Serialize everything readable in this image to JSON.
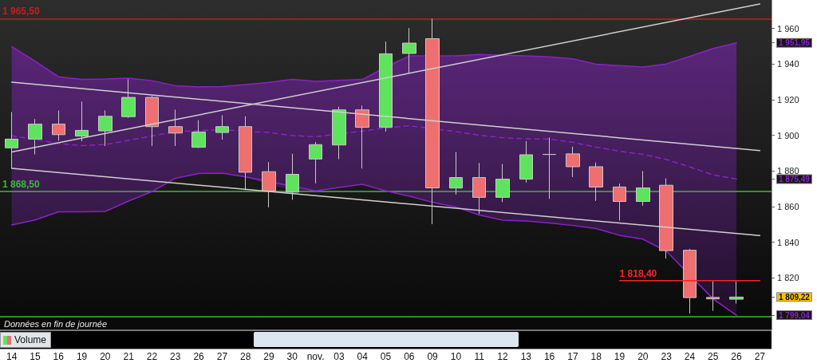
{
  "chart_data": {
    "type": "candlestick",
    "categories": [
      "14",
      "15",
      "16",
      "19",
      "20",
      "21",
      "22",
      "23",
      "26",
      "27",
      "28",
      "29",
      "30",
      "nov.",
      "03",
      "04",
      "05",
      "06",
      "09",
      "10",
      "11",
      "12",
      "13",
      "16",
      "17",
      "18",
      "19",
      "20",
      "23",
      "24",
      "25",
      "26",
      "27"
    ],
    "series": [
      {
        "type": "line",
        "color": "#8a22c8",
        "line_style": "dashed",
        "values": [
          1899.7,
          1897.8,
          1895.4,
          1894.3,
          1894.8,
          1897.2,
          1899.6,
          1902.1,
          1902.7,
          1903.1,
          null,
          1901.6,
          1899.9,
          1899.2,
          null,
          1902.4,
          1904.2,
          1905.4,
          null,
          1902.1,
          1900.1,
          1898.7,
          1898.1,
          1897.9,
          1896.1,
          1893.4,
          1891.1,
          1889.3,
          1886.5,
          1882.3,
          1877.8,
          1875.49,
          null
        ],
        "upper": [
          1949.9,
          1941.7,
          1932.9,
          1931.4,
          1931.6,
          1932.1,
          1930.7,
          1927.9,
          1927.2,
          1927.4,
          1928.5,
          1929.8,
          1931.4,
          1930.3,
          1930.9,
          1931.4,
          1939.4,
          1944.6,
          1943.9,
          1944.6,
          1945.4,
          1945.0,
          1944.6,
          1944.1,
          1943.0,
          1939.9,
          1939.2,
          1938.4,
          1940.1,
          1944.3,
          1948.8,
          1951.95,
          null
        ],
        "lower": [
          1849.7,
          1852.5,
          1857.1,
          1857.1,
          1857.3,
          1863.1,
          1868.4,
          1875.9,
          1878.6,
          1878.8,
          1876.7,
          1872.5,
          1869.0,
          1868.8,
          1870.7,
          1872.5,
          1868.8,
          1865.9,
          1862.4,
          1859.8,
          1855.3,
          1852.4,
          1851.9,
          1850.8,
          1849.4,
          1847.7,
          1843.9,
          1841.7,
          1835.0,
          1821.1,
          1808.2,
          1799.04,
          null
        ]
      },
      {
        "type": "line",
        "color": "#8a22c8",
        "values": [
          1949.9,
          1941.7,
          1932.9,
          1931.4,
          1931.6,
          1932.1,
          1930.7,
          1927.9,
          1927.2,
          1927.4,
          1928.5,
          1929.8,
          1931.4,
          1930.3,
          1930.9,
          1931.4,
          null,
          1944.6,
          null,
          1944.6,
          1945.4,
          1945.0,
          1944.6,
          1944.1,
          1943.0,
          1939.9,
          1939.2,
          1938.4,
          1940.1,
          1944.3,
          1948.8,
          1951.95,
          null
        ]
      },
      {
        "type": "line",
        "color": "#8a22c8",
        "values": [
          1849.7,
          1852.5,
          1857.1,
          1857.1,
          1857.3,
          1863.1,
          1868.4,
          1875.9,
          1878.6,
          1878.8,
          1876.7,
          null,
          null,
          1868.8,
          1870.7,
          1872.5,
          1868.8,
          1865.9,
          1862.4,
          1859.8,
          1855.3,
          1852.4,
          1851.9,
          1850.8,
          1849.4,
          1847.7,
          1843.9,
          1841.7,
          1835.0,
          null,
          1808.2,
          1799.04,
          null
        ]
      },
      {
        "type": "candlestick",
        "ohlc": [
          [
            1893.0,
            1913.1,
            1881.5,
            1897.9
          ],
          [
            1897.9,
            1909.1,
            1889.3,
            1906.3
          ],
          [
            1906.3,
            1914.0,
            1897.0,
            1900.4
          ],
          [
            1899.6,
            1918.9,
            1896.7,
            1902.8
          ],
          [
            1902.5,
            1914.0,
            1894.0,
            1910.7
          ],
          [
            1910.5,
            1931.5,
            1909.8,
            1921.3
          ],
          [
            1921.3,
            1922.3,
            1894.0,
            1904.9
          ],
          [
            1904.9,
            1914.4,
            1894.0,
            1901.3
          ],
          [
            1893.3,
            1908.5,
            1892.9,
            1901.9
          ],
          [
            1901.6,
            1911.3,
            1897.6,
            1904.9
          ],
          [
            1904.9,
            1910.7,
            1869.2,
            1879.3
          ],
          [
            1879.6,
            1885.0,
            1859.5,
            1868.8
          ],
          [
            1868.1,
            1889.7,
            1863.8,
            1878.1
          ],
          [
            1886.7,
            1896.3,
            1873.0,
            1894.8
          ],
          [
            1894.6,
            1916.1,
            1886.6,
            1914.3
          ],
          [
            1914.3,
            1916.7,
            1881.4,
            1904.5
          ],
          [
            1904.5,
            1952.7,
            1902.1,
            1945.8
          ],
          [
            1946.0,
            1960.3,
            1935.1,
            1951.8
          ],
          [
            1954.3,
            1965.5,
            1850.1,
            1870.5
          ],
          [
            1870.4,
            1890.6,
            1866.8,
            1876.3
          ],
          [
            1876.3,
            1884.5,
            1855.8,
            1865.2
          ],
          [
            1865.2,
            1883.9,
            1862.5,
            1875.4
          ],
          [
            1875.4,
            1896.7,
            1873.5,
            1889.1
          ],
          [
            1889.3,
            1898.8,
            1864.3,
            1889.3
          ],
          [
            1889.6,
            1893.6,
            1876.6,
            1882.4
          ],
          [
            1882.4,
            1884.8,
            1863.2,
            1871.0
          ],
          [
            1871.0,
            1872.9,
            1852.2,
            1862.9
          ],
          [
            1862.9,
            1880.0,
            1860.5,
            1870.5
          ],
          [
            1872.0,
            1875.9,
            1830.8,
            1835.3
          ],
          [
            1835.5,
            1836.3,
            1800.0,
            1808.9
          ],
          [
            1809.0,
            1818.1,
            1801.5,
            1808.2
          ],
          [
            1808.0,
            1818.1,
            1805.5,
            1809.22
          ],
          null
        ],
        "colors": [
          "#5fe35f",
          "#5fe35f",
          "#ee6f6f",
          "#5fe35f",
          "#5fe35f",
          "#5fe35f",
          "#ee6f6f",
          "#ee6f6f",
          "#5fe35f",
          "#5fe35f",
          "#ee6f6f",
          "#ee6f6f",
          "#5fe35f",
          "#5fe35f",
          "#5fe35f",
          "#ee6f6f",
          "#5fe35f",
          "#5fe35f",
          "#ee6f6f",
          "#5fe35f",
          "#ee6f6f",
          "#5fe35f",
          "#5fe35f",
          "#d0d0d0",
          "#ee6f6f",
          "#ee6f6f",
          "#ee6f6f",
          "#5fe35f",
          "#ee6f6f",
          "#ee6f6f",
          "#ee6f6f",
          "#5fe35f",
          null
        ]
      },
      {
        "type": "line",
        "color": "#cfcfcf",
        "values": [
          1929.9,
          null,
          null,
          null,
          null,
          null,
          null,
          null,
          null,
          null,
          null,
          null,
          null,
          null,
          null,
          null,
          null,
          null,
          null,
          null,
          null,
          null,
          null,
          null,
          null,
          null,
          null,
          null,
          null,
          null,
          null,
          null,
          1891.4
        ]
      },
      {
        "type": "line",
        "color": "#cfcfcf",
        "values": [
          1890.7,
          null,
          null,
          null,
          null,
          null,
          null,
          null,
          null,
          null,
          null,
          null,
          null,
          null,
          null,
          null,
          null,
          null,
          null,
          null,
          null,
          null,
          null,
          null,
          null,
          null,
          null,
          null,
          null,
          null,
          null,
          null,
          1973.8
        ]
      },
      {
        "type": "line",
        "color": "#cfcfcf",
        "values": [
          1881.5,
          null,
          null,
          null,
          null,
          null,
          null,
          null,
          null,
          null,
          null,
          null,
          null,
          null,
          null,
          null,
          null,
          null,
          null,
          null,
          null,
          null,
          null,
          null,
          null,
          null,
          null,
          null,
          null,
          null,
          null,
          null,
          1843.7
        ]
      },
      {
        "type": "line",
        "color": "#ff2222",
        "values": [
          null,
          null,
          null,
          null,
          null,
          null,
          null,
          null,
          null,
          null,
          null,
          null,
          null,
          null,
          null,
          null,
          null,
          null,
          null,
          null,
          null,
          null,
          null,
          null,
          null,
          null,
          1818.4,
          1818.4,
          1818.4,
          1818.4,
          1818.4,
          1818.4,
          1818.4
        ],
        "value_labels": [
          null,
          null,
          null,
          null,
          null,
          null,
          null,
          null,
          null,
          null,
          null,
          null,
          null,
          null,
          null,
          null,
          null,
          null,
          null,
          null,
          null,
          null,
          null,
          null,
          null,
          null,
          "1 818,40",
          null,
          null,
          null,
          null,
          null,
          null
        ]
      }
    ],
    "ylim": [
      1791,
      1976
    ],
    "yticks": [
      {
        "value": 1799.04,
        "label": "1 799,04"
      },
      {
        "value": 1809.22,
        "label": "1 809,22"
      },
      {
        "value": 1820,
        "label": "1 820"
      },
      {
        "value": 1840,
        "label": "1 840"
      },
      {
        "value": 1860,
        "label": "1 860"
      },
      {
        "value": 1875.49,
        "label": "1 875,49"
      },
      {
        "value": 1880,
        "label": "1 880"
      },
      {
        "value": 1900,
        "label": "1 900"
      },
      {
        "value": 1920,
        "label": "1 920"
      },
      {
        "value": 1940,
        "label": "1 940"
      },
      {
        "value": 1951.95,
        "label": "1 951,95"
      },
      {
        "value": 1960,
        "label": "1 960"
      }
    ],
    "ref_lines": [
      {
        "axis": "y",
        "value": 1965.5,
        "label": "1 965,50",
        "color": "#c41e1e"
      },
      {
        "axis": "y",
        "value": 1868.5,
        "label": "1 868,50",
        "color": "#3cb83c"
      },
      {
        "axis": "y",
        "value": 1798.5,
        "color": "#3cb83c"
      }
    ],
    "annotations": [
      "Données en fin de journée",
      "Volume"
    ]
  }
}
